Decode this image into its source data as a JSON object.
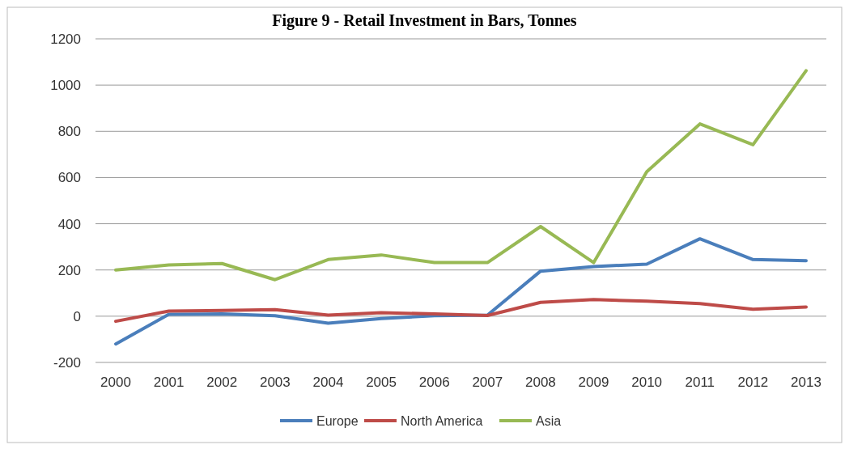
{
  "chart_data": {
    "type": "line",
    "title": "Figure 9 - Retail Investment in Bars, Tonnes",
    "categories": [
      "2000",
      "2001",
      "2002",
      "2003",
      "2004",
      "2005",
      "2006",
      "2007",
      "2008",
      "2009",
      "2010",
      "2011",
      "2012",
      "2013"
    ],
    "series": [
      {
        "name": "Europe",
        "color": "#4a7ebb",
        "values": [
          -120,
          8,
          10,
          2,
          -30,
          -10,
          2,
          5,
          195,
          215,
          225,
          335,
          245,
          240
        ]
      },
      {
        "name": "North America",
        "color": "#be4b48",
        "values": [
          -22,
          22,
          25,
          28,
          5,
          15,
          10,
          3,
          60,
          72,
          65,
          55,
          30,
          40
        ]
      },
      {
        "name": "Asia",
        "color": "#98b954",
        "values": [
          200,
          222,
          228,
          158,
          245,
          265,
          232,
          232,
          388,
          232,
          625,
          832,
          742,
          1062
        ]
      }
    ],
    "ylim": [
      -200,
      1200
    ],
    "yticks": [
      -200,
      0,
      200,
      400,
      600,
      800,
      1000,
      1200
    ],
    "grid": "y",
    "legend": "bottom",
    "marker": "none",
    "line_style": "solid"
  }
}
